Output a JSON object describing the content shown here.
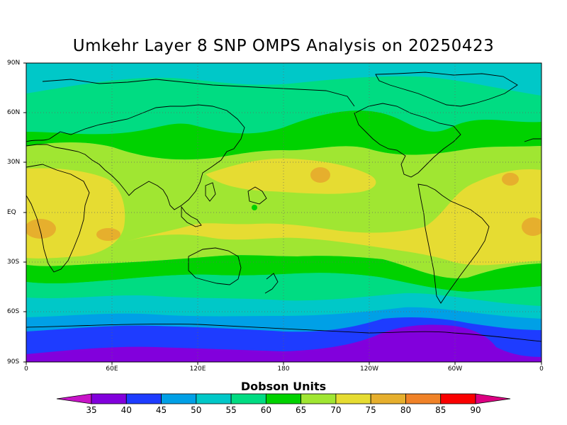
{
  "title": "Umkehr Layer 8 SNP OMPS Analysis on 20250423",
  "lat_labels": [
    "90N",
    "60N",
    "30N",
    "EQ",
    "30S",
    "60S",
    "90S"
  ],
  "lon_labels": [
    "0",
    "60E",
    "120E",
    "180",
    "120W",
    "60W",
    "0"
  ],
  "colorbar": {
    "title": "Dobson Units",
    "ticks": [
      "35",
      "40",
      "45",
      "50",
      "55",
      "60",
      "65",
      "70",
      "75",
      "80",
      "85",
      "90"
    ],
    "colors": [
      "#c814c8",
      "#8200dc",
      "#1e3cff",
      "#00a0e6",
      "#00c8c8",
      "#00dc82",
      "#00d200",
      "#a0e632",
      "#e6dc32",
      "#e6af2d",
      "#f08228",
      "#fa0000",
      "#dc0082"
    ]
  },
  "map_data": {
    "type": "filled-contour-map",
    "projection": "cylindrical equidistant",
    "lon_range": [
      0,
      360
    ],
    "lat_range": [
      -90,
      90
    ],
    "variable": "Umkehr Layer 8 ozone",
    "units": "Dobson Units",
    "date": "20250423",
    "contour_levels": [
      35,
      40,
      45,
      50,
      55,
      60,
      65,
      70,
      75,
      80,
      85,
      90
    ]
  }
}
